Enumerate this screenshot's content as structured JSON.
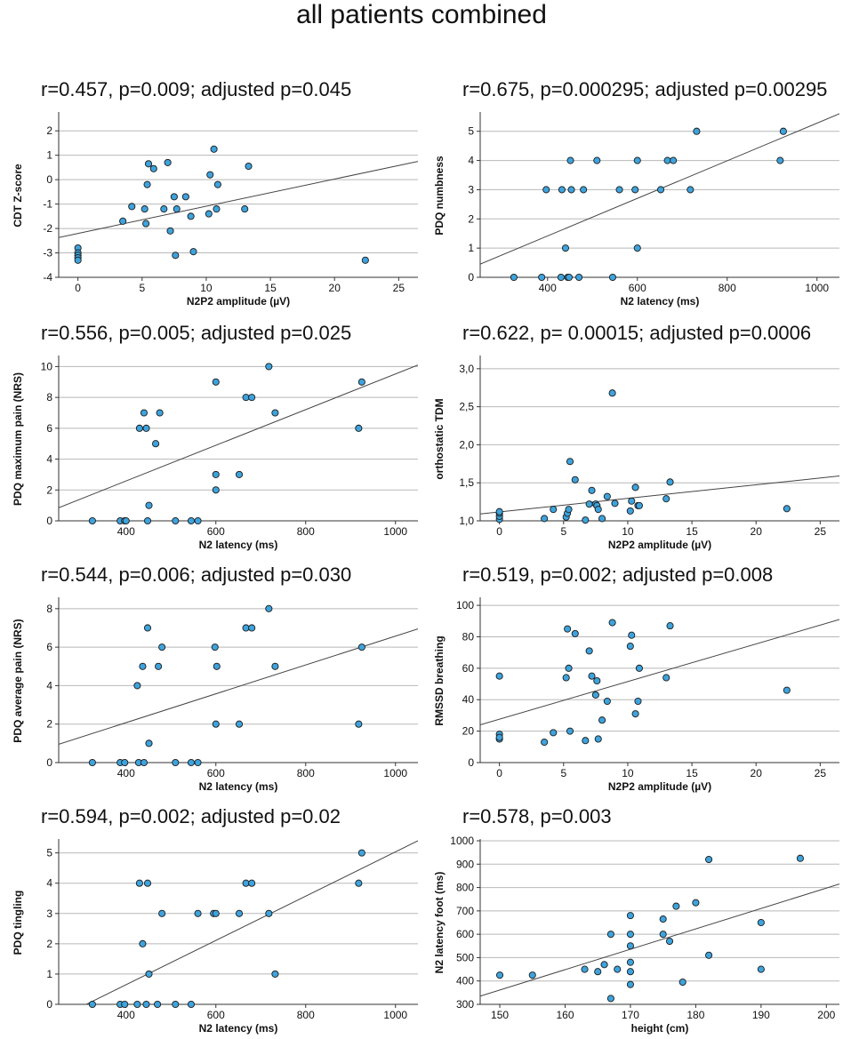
{
  "figure_title": "all patients combined",
  "colors": {
    "point": "#3ea3dc",
    "grid": "#b8b8b8",
    "line": "#444444"
  },
  "chart_data": [
    {
      "type": "scatter",
      "title": "r=0.457, p=0.009; adjusted p=0.045",
      "xlabel": "N2P2 amplitude (µV)",
      "ylabel": "CDT Z-score",
      "xlim": [
        -1.5,
        26.5
      ],
      "ylim": [
        -4,
        2.7
      ],
      "xticks": [
        0,
        5,
        10,
        15,
        20,
        25
      ],
      "xtick_labels": [
        "0",
        "5",
        "10",
        "15",
        "20",
        "25"
      ],
      "yticks": [
        -4,
        -3,
        -2,
        -1,
        0,
        1,
        2
      ],
      "ytick_labels": [
        "-4",
        "-3",
        "-2",
        "-1",
        "0",
        "1",
        "2"
      ],
      "ygrid": [
        -3,
        -2,
        -1,
        0,
        1,
        2
      ],
      "points": [
        [
          0,
          -2.8
        ],
        [
          0,
          -3.0
        ],
        [
          0,
          -3.1
        ],
        [
          0,
          -3.2
        ],
        [
          0,
          -3.3
        ],
        [
          3.5,
          -1.7
        ],
        [
          4.2,
          -1.1
        ],
        [
          5.2,
          -1.2
        ],
        [
          5.3,
          -1.8
        ],
        [
          5.4,
          -0.2
        ],
        [
          5.5,
          0.65
        ],
        [
          5.9,
          0.45
        ],
        [
          6.7,
          -1.2
        ],
        [
          7.0,
          0.7
        ],
        [
          7.2,
          -2.1
        ],
        [
          7.5,
          -0.7
        ],
        [
          7.6,
          -3.1
        ],
        [
          7.7,
          -1.2
        ],
        [
          8.4,
          -0.7
        ],
        [
          8.8,
          -1.5
        ],
        [
          9.0,
          -2.95
        ],
        [
          10.2,
          -1.4
        ],
        [
          10.3,
          0.2
        ],
        [
          10.6,
          1.25
        ],
        [
          10.8,
          -1.2
        ],
        [
          10.9,
          -0.2
        ],
        [
          13.0,
          -1.2
        ],
        [
          13.3,
          0.55
        ],
        [
          22.4,
          -3.3
        ]
      ],
      "fit": [
        [
          -1.5,
          -2.37
        ],
        [
          26.5,
          0.75
        ]
      ]
    },
    {
      "type": "scatter",
      "title": "r=0.675, p=0.000295;  adjusted p=0.00295",
      "xlabel": "N2 latency (ms)",
      "ylabel": "PDQ numbness",
      "xlim": [
        250,
        1050
      ],
      "ylim": [
        0,
        5.6
      ],
      "xticks": [
        400,
        600,
        800,
        1000
      ],
      "xtick_labels": [
        "400",
        "600",
        "800",
        "1000"
      ],
      "yticks": [
        0,
        1,
        2,
        3,
        4,
        5
      ],
      "ytick_labels": [
        "0",
        "1",
        "2",
        "3",
        "4",
        "5"
      ],
      "ygrid": [
        1,
        2,
        3,
        4,
        5
      ],
      "points": [
        [
          325,
          0
        ],
        [
          387,
          0
        ],
        [
          397,
          3
        ],
        [
          430,
          0
        ],
        [
          432,
          3
        ],
        [
          440,
          1
        ],
        [
          445,
          0
        ],
        [
          448,
          0
        ],
        [
          451,
          4
        ],
        [
          453,
          3
        ],
        [
          470,
          0
        ],
        [
          480,
          3
        ],
        [
          510,
          4
        ],
        [
          545,
          0
        ],
        [
          560,
          3
        ],
        [
          595,
          3
        ],
        [
          600,
          1
        ],
        [
          600,
          4
        ],
        [
          652,
          3
        ],
        [
          667,
          4
        ],
        [
          680,
          4
        ],
        [
          718,
          3
        ],
        [
          732,
          5
        ],
        [
          918,
          4
        ],
        [
          925,
          5
        ]
      ],
      "fit": [
        [
          250,
          0.45
        ],
        [
          1050,
          5.6
        ]
      ]
    },
    {
      "type": "scatter",
      "title": "r=0.556, p=0.005; adjusted p=0.025",
      "xlabel": "N2 latency (ms)",
      "ylabel": "PDQ maximum pain (NRS)",
      "xlim": [
        250,
        1050
      ],
      "ylim": [
        0,
        10.6
      ],
      "xticks": [
        400,
        600,
        800,
        1000
      ],
      "xtick_labels": [
        "400",
        "600",
        "800",
        "1000"
      ],
      "yticks": [
        0,
        2,
        4,
        6,
        8,
        10
      ],
      "ytick_labels": [
        "0",
        "2",
        "4",
        "6",
        "8",
        "10"
      ],
      "ygrid": [
        2,
        4,
        6,
        8,
        10
      ],
      "points": [
        [
          325,
          0
        ],
        [
          387,
          0
        ],
        [
          397,
          0
        ],
        [
          400,
          0
        ],
        [
          430,
          6
        ],
        [
          440,
          7
        ],
        [
          445,
          6
        ],
        [
          448,
          0
        ],
        [
          451,
          1
        ],
        [
          466,
          5
        ],
        [
          475,
          7
        ],
        [
          510,
          0
        ],
        [
          545,
          0
        ],
        [
          560,
          0
        ],
        [
          600,
          9
        ],
        [
          600,
          3
        ],
        [
          600,
          2
        ],
        [
          652,
          3
        ],
        [
          667,
          8
        ],
        [
          680,
          8
        ],
        [
          718,
          10
        ],
        [
          732,
          7
        ],
        [
          918,
          6
        ],
        [
          925,
          9
        ]
      ],
      "fit": [
        [
          250,
          0.85
        ],
        [
          1050,
          10.1
        ]
      ]
    },
    {
      "type": "scatter",
      "title": "r=0.622, p= 0.00015; adjusted p=0.0006",
      "xlabel": "N2P2 amplitude (µV)",
      "ylabel": "orthostatic TDM",
      "xlim": [
        -1.5,
        26.5
      ],
      "ylim": [
        1.0,
        3.15
      ],
      "xticks": [
        0,
        5,
        10,
        15,
        20,
        25
      ],
      "xtick_labels": [
        "0",
        "5",
        "10",
        "15",
        "20",
        "25"
      ],
      "yticks": [
        1.0,
        1.5,
        2.0,
        2.5,
        3.0
      ],
      "ytick_labels": [
        "1,0",
        "1,5",
        "2,0",
        "2,5",
        "3,0"
      ],
      "ygrid": [
        1.5,
        2.0,
        2.5,
        3.0
      ],
      "points": [
        [
          0,
          1.02
        ],
        [
          0,
          1.06
        ],
        [
          0,
          1.1
        ],
        [
          0,
          1.12
        ],
        [
          3.5,
          1.03
        ],
        [
          4.2,
          1.15
        ],
        [
          5.2,
          1.05
        ],
        [
          5.3,
          1.1
        ],
        [
          5.4,
          1.15
        ],
        [
          5.5,
          1.78
        ],
        [
          5.9,
          1.54
        ],
        [
          6.7,
          1.01
        ],
        [
          7.0,
          1.22
        ],
        [
          7.2,
          1.4
        ],
        [
          7.5,
          1.22
        ],
        [
          7.6,
          1.2
        ],
        [
          7.7,
          1.15
        ],
        [
          8.0,
          1.03
        ],
        [
          8.4,
          1.32
        ],
        [
          8.8,
          2.68
        ],
        [
          9.0,
          1.23
        ],
        [
          10.2,
          1.13
        ],
        [
          10.3,
          1.26
        ],
        [
          10.6,
          1.44
        ],
        [
          10.8,
          1.2
        ],
        [
          10.9,
          1.2
        ],
        [
          13.0,
          1.29
        ],
        [
          13.3,
          1.51
        ],
        [
          22.4,
          1.16
        ]
      ],
      "fit": [
        [
          -1.5,
          1.09
        ],
        [
          26.5,
          1.59
        ]
      ]
    },
    {
      "type": "scatter",
      "title": "r=0.544, p=0.006; adjusted p=0.030",
      "xlabel": "N2 latency (ms)",
      "ylabel": "PDQ average pain (NRS)",
      "xlim": [
        250,
        1050
      ],
      "ylim": [
        0,
        8.5
      ],
      "xticks": [
        400,
        600,
        800,
        1000
      ],
      "xtick_labels": [
        "400",
        "600",
        "800",
        "1000"
      ],
      "yticks": [
        0,
        2,
        4,
        6,
        8
      ],
      "ytick_labels": [
        "0",
        "2",
        "4",
        "6",
        "8"
      ],
      "ygrid": [
        2,
        4,
        6,
        8
      ],
      "points": [
        [
          325,
          0
        ],
        [
          387,
          0
        ],
        [
          397,
          0
        ],
        [
          425,
          4
        ],
        [
          428,
          0
        ],
        [
          437,
          5
        ],
        [
          440,
          0
        ],
        [
          448,
          7
        ],
        [
          451,
          1
        ],
        [
          472,
          5
        ],
        [
          480,
          6
        ],
        [
          510,
          0
        ],
        [
          545,
          0
        ],
        [
          560,
          0
        ],
        [
          598,
          6
        ],
        [
          600,
          2
        ],
        [
          602,
          5
        ],
        [
          652,
          2
        ],
        [
          667,
          7
        ],
        [
          680,
          7
        ],
        [
          718,
          8
        ],
        [
          732,
          5
        ],
        [
          918,
          2
        ],
        [
          925,
          6
        ]
      ],
      "fit": [
        [
          250,
          0.95
        ],
        [
          1050,
          6.95
        ]
      ]
    },
    {
      "type": "scatter",
      "title": "r=0.519, p=0.002; adjusted p=0.008",
      "xlabel": "N2P2 amplitude (µV)",
      "ylabel": "RMSSD breathing",
      "xlim": [
        -1.5,
        26.5
      ],
      "ylim": [
        0,
        104
      ],
      "xticks": [
        0,
        5,
        10,
        15,
        20,
        25
      ],
      "xtick_labels": [
        "0",
        "5",
        "10",
        "15",
        "20",
        "25"
      ],
      "yticks": [
        0,
        20,
        40,
        60,
        80,
        100
      ],
      "ytick_labels": [
        "0",
        "20",
        "40",
        "60",
        "80",
        "100"
      ],
      "ygrid": [
        20,
        40,
        60,
        80,
        100
      ],
      "points": [
        [
          0,
          55
        ],
        [
          0,
          18
        ],
        [
          0,
          15
        ],
        [
          0,
          16
        ],
        [
          3.5,
          13
        ],
        [
          4.2,
          19
        ],
        [
          5.2,
          54
        ],
        [
          5.3,
          85
        ],
        [
          5.4,
          60
        ],
        [
          5.5,
          20
        ],
        [
          5.9,
          82
        ],
        [
          6.7,
          14
        ],
        [
          7.0,
          71
        ],
        [
          7.2,
          55
        ],
        [
          7.5,
          43
        ],
        [
          7.6,
          52
        ],
        [
          7.7,
          15
        ],
        [
          8.0,
          27
        ],
        [
          8.4,
          39
        ],
        [
          8.8,
          89
        ],
        [
          10.2,
          74
        ],
        [
          10.3,
          81
        ],
        [
          10.6,
          31
        ],
        [
          10.8,
          39
        ],
        [
          10.9,
          60
        ],
        [
          13.0,
          54
        ],
        [
          13.3,
          87
        ],
        [
          22.4,
          46
        ]
      ],
      "fit": [
        [
          -1.5,
          24
        ],
        [
          26.5,
          91
        ]
      ]
    },
    {
      "type": "scatter",
      "title": "r=0.594, p=0.002; adjusted p=0.02",
      "xlabel": "N2 latency (ms)",
      "ylabel": "PDQ tingling",
      "xlim": [
        250,
        1050
      ],
      "ylim": [
        0,
        5.4
      ],
      "xticks": [
        400,
        600,
        800,
        1000
      ],
      "xtick_labels": [
        "400",
        "600",
        "800",
        "1000"
      ],
      "yticks": [
        0,
        1,
        2,
        3,
        4,
        5
      ],
      "ytick_labels": [
        "0",
        "1",
        "2",
        "3",
        "4",
        "5"
      ],
      "ygrid": [
        1,
        2,
        3,
        4,
        5
      ],
      "points": [
        [
          325,
          0
        ],
        [
          387,
          0
        ],
        [
          397,
          0
        ],
        [
          425,
          0
        ],
        [
          430,
          4
        ],
        [
          437,
          2
        ],
        [
          445,
          0
        ],
        [
          448,
          4
        ],
        [
          451,
          1
        ],
        [
          470,
          0
        ],
        [
          480,
          3
        ],
        [
          510,
          0
        ],
        [
          545,
          0
        ],
        [
          560,
          3
        ],
        [
          595,
          3
        ],
        [
          600,
          3
        ],
        [
          652,
          3
        ],
        [
          667,
          4
        ],
        [
          680,
          4
        ],
        [
          718,
          3
        ],
        [
          732,
          1
        ],
        [
          918,
          4
        ],
        [
          925,
          5
        ]
      ],
      "fit": [
        [
          250,
          -0.45
        ],
        [
          1050,
          5.4
        ]
      ]
    },
    {
      "type": "scatter",
      "title": "r=0.578, p=0.003",
      "xlabel": "height (cm)",
      "ylabel": "N2 latency foot (ms)",
      "xlim": [
        147,
        202
      ],
      "ylim": [
        300,
        1000
      ],
      "xticks": [
        150,
        160,
        170,
        180,
        190,
        200
      ],
      "xtick_labels": [
        "150",
        "160",
        "170",
        "180",
        "190",
        "200"
      ],
      "yticks": [
        300,
        400,
        500,
        600,
        700,
        800,
        900,
        1000
      ],
      "ytick_labels": [
        "300",
        "400",
        "500",
        "600",
        "700",
        "800",
        "900",
        "1000"
      ],
      "ygrid": [
        400,
        500,
        600,
        700,
        800,
        900,
        1000
      ],
      "points": [
        [
          150,
          425
        ],
        [
          155,
          425
        ],
        [
          163,
          450
        ],
        [
          165,
          440
        ],
        [
          166,
          470
        ],
        [
          167,
          600
        ],
        [
          167,
          325
        ],
        [
          168,
          450
        ],
        [
          170,
          680
        ],
        [
          170,
          600
        ],
        [
          170,
          550
        ],
        [
          170,
          480
        ],
        [
          170,
          440
        ],
        [
          170,
          385
        ],
        [
          175,
          665
        ],
        [
          175,
          600
        ],
        [
          176,
          570
        ],
        [
          177,
          720
        ],
        [
          178,
          395
        ],
        [
          180,
          735
        ],
        [
          182,
          920
        ],
        [
          182,
          510
        ],
        [
          190,
          650
        ],
        [
          190,
          450
        ],
        [
          196,
          925
        ]
      ],
      "fit": [
        [
          147,
          335
        ],
        [
          202,
          815
        ]
      ]
    }
  ]
}
